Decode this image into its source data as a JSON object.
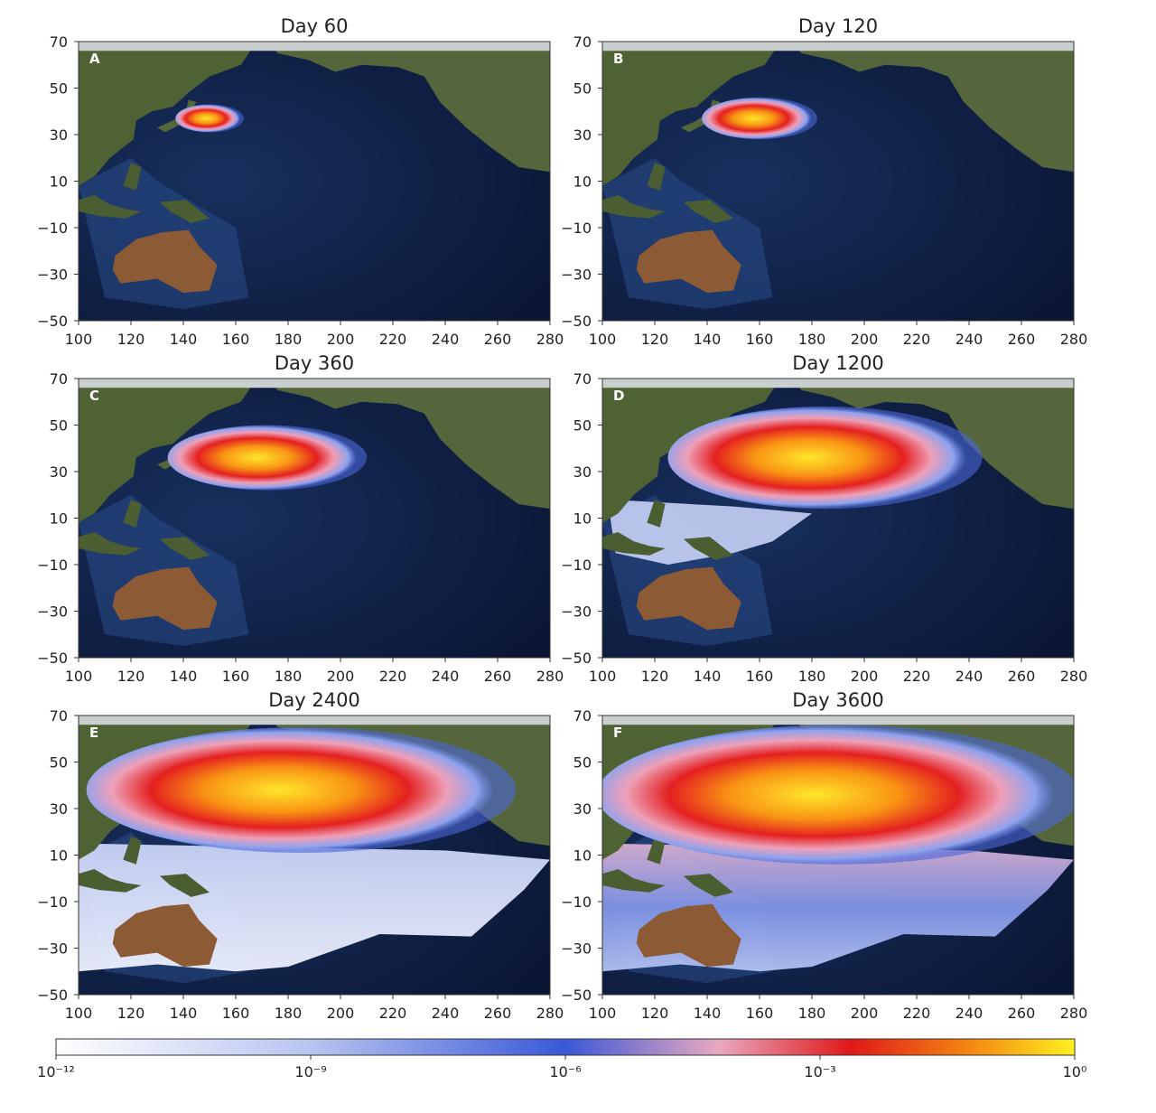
{
  "panels": [
    {
      "title": "Day 60",
      "letter": "A"
    },
    {
      "title": "Day 120",
      "letter": "B"
    },
    {
      "title": "Day 360",
      "letter": "C"
    },
    {
      "title": "Day 1200",
      "letter": "D"
    },
    {
      "title": "Day 2400",
      "letter": "E"
    },
    {
      "title": "Day 3600",
      "letter": "F"
    }
  ],
  "xlim": [
    100,
    280
  ],
  "ylim": [
    -50,
    70
  ],
  "xticks": [
    100,
    120,
    140,
    160,
    180,
    200,
    220,
    240,
    260,
    280
  ],
  "yticks": [
    70,
    50,
    30,
    10,
    {
      "value": -10,
      "label": "−10"
    },
    {
      "value": -30,
      "label": "−30"
    },
    {
      "value": -50,
      "label": "−50"
    }
  ],
  "colorbar": {
    "log": true,
    "lim": [
      1e-12,
      1
    ],
    "ticks": [
      {
        "value": 1e-12,
        "label": "10⁻¹²"
      },
      {
        "value": 1e-09,
        "label": "10⁻⁹"
      },
      {
        "value": 1e-06,
        "label": "10⁻⁶"
      },
      {
        "value": 0.001,
        "label": "10⁻³"
      },
      {
        "value": 1,
        "label": "10⁰"
      }
    ]
  }
}
